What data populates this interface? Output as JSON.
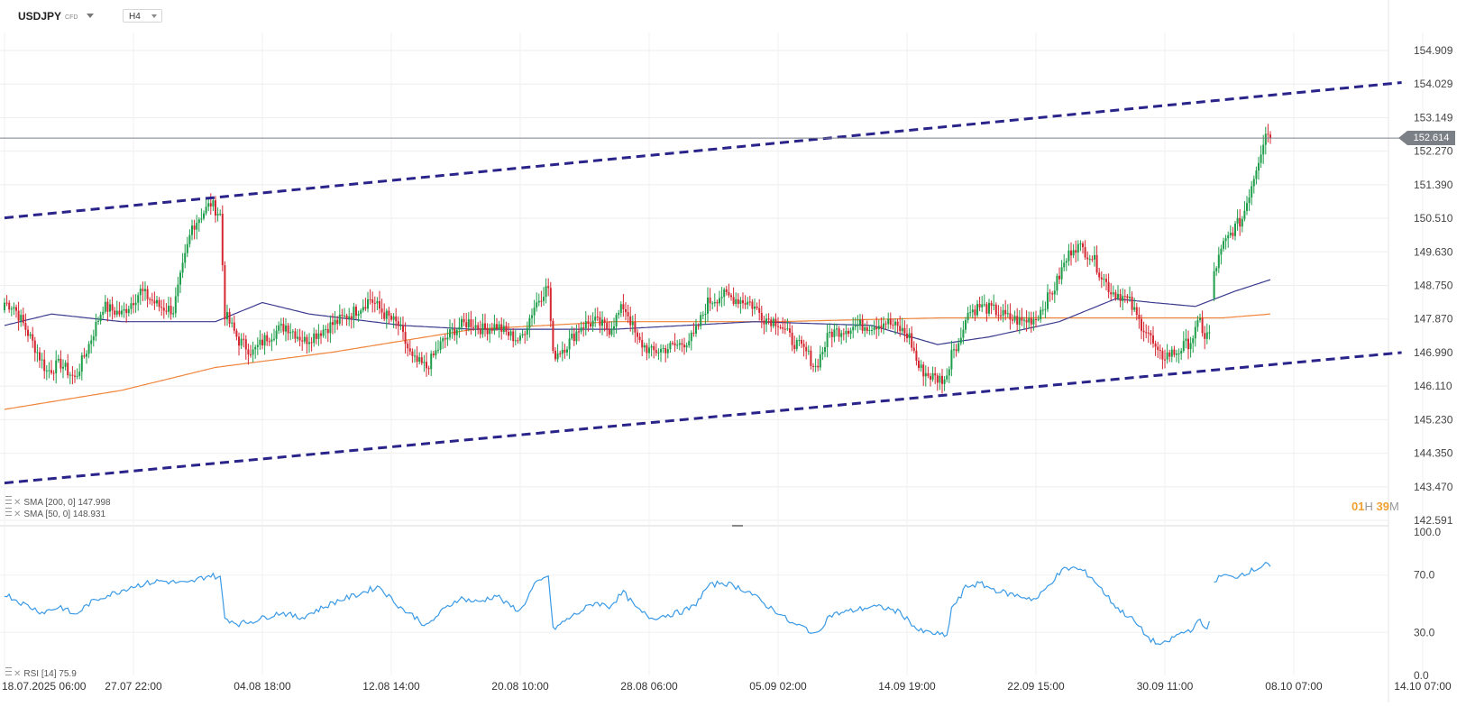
{
  "toolbar": {
    "symbol": "USDJPY",
    "symbol_type": "CFD",
    "timeframe": "H4"
  },
  "legend": {
    "sma200": "SMA [200, 0] 147.998",
    "sma50": "SMA [50, 0] 148.931",
    "rsi": "RSI [14] 75.9"
  },
  "countdown": {
    "hours": "01",
    "hours_unit": "H",
    "minutes": "39",
    "minutes_unit": "M"
  },
  "current_price": "152.614",
  "colors": {
    "up_candle": "#1e9e4a",
    "down_candle": "#d42731",
    "sma200": "#f0843a",
    "sma50": "#3a3a8e",
    "channel": "#29238a",
    "rsi": "#3a9ae6",
    "price_line": "#7b7f86",
    "countdown": "#f0a030"
  },
  "chart_data": [
    {
      "type": "candlestick",
      "symbol": "USDJPY",
      "timeframe": "H4",
      "y_ticks": [
        "154.909",
        "154.029",
        "153.149",
        "152.270",
        "151.390",
        "150.510",
        "149.630",
        "148.750",
        "147.870",
        "146.990",
        "146.110",
        "145.230",
        "144.350",
        "143.470",
        "142.591"
      ],
      "ylim": [
        142.591,
        155.5
      ],
      "x_ticks": [
        "18.07.2025 06:00",
        "27.07 22:00",
        "04.08 18:00",
        "12.08 14:00",
        "20.08 10:00",
        "28.08 06:00",
        "05.09 02:00",
        "14.09 19:00",
        "22.09 15:00",
        "30.09 11:00",
        "08.10 07:00",
        "14.10 07:00"
      ],
      "last_price": 152.614,
      "anchors": [
        [
          0,
          148.3
        ],
        [
          4,
          148.2
        ],
        [
          10,
          147.5
        ],
        [
          18,
          146.5
        ],
        [
          24,
          146.7
        ],
        [
          30,
          146.3
        ],
        [
          36,
          147.2
        ],
        [
          42,
          148.2
        ],
        [
          50,
          148.0
        ],
        [
          58,
          148.6
        ],
        [
          66,
          148.2
        ],
        [
          72,
          148.1
        ],
        [
          80,
          150.3
        ],
        [
          84,
          150.6
        ],
        [
          88,
          150.9
        ],
        [
          92,
          150.6
        ],
        [
          94,
          148.0
        ],
        [
          100,
          147.3
        ],
        [
          106,
          147.0
        ],
        [
          112,
          147.4
        ],
        [
          120,
          147.7
        ],
        [
          128,
          147.3
        ],
        [
          136,
          147.6
        ],
        [
          142,
          147.8
        ],
        [
          150,
          148.1
        ],
        [
          156,
          148.4
        ],
        [
          162,
          148.0
        ],
        [
          168,
          147.7
        ],
        [
          174,
          146.8
        ],
        [
          180,
          146.6
        ],
        [
          186,
          147.2
        ],
        [
          192,
          147.6
        ],
        [
          198,
          147.8
        ],
        [
          204,
          147.6
        ],
        [
          210,
          147.7
        ],
        [
          214,
          147.5
        ],
        [
          220,
          147.3
        ],
        [
          226,
          148.2
        ],
        [
          230,
          148.6
        ],
        [
          232,
          148.7
        ],
        [
          234,
          146.9
        ],
        [
          240,
          147.2
        ],
        [
          246,
          147.7
        ],
        [
          252,
          147.8
        ],
        [
          258,
          147.6
        ],
        [
          264,
          148.2
        ],
        [
          266,
          148.0
        ],
        [
          270,
          147.3
        ],
        [
          276,
          147.0
        ],
        [
          282,
          147.1
        ],
        [
          288,
          147.2
        ],
        [
          294,
          147.4
        ],
        [
          300,
          148.3
        ],
        [
          306,
          148.5
        ],
        [
          312,
          148.4
        ],
        [
          318,
          148.3
        ],
        [
          324,
          147.9
        ],
        [
          330,
          147.8
        ],
        [
          336,
          147.3
        ],
        [
          342,
          147.0
        ],
        [
          346,
          146.6
        ],
        [
          352,
          147.5
        ],
        [
          358,
          147.6
        ],
        [
          364,
          147.7
        ],
        [
          370,
          147.7
        ],
        [
          376,
          147.8
        ],
        [
          382,
          147.6
        ],
        [
          386,
          147.4
        ],
        [
          390,
          146.6
        ],
        [
          394,
          146.4
        ],
        [
          398,
          146.3
        ],
        [
          402,
          146.3
        ],
        [
          404,
          147.1
        ],
        [
          408,
          147.3
        ],
        [
          410,
          148.0
        ],
        [
          416,
          148.2
        ],
        [
          422,
          148.1
        ],
        [
          428,
          147.9
        ],
        [
          434,
          147.8
        ],
        [
          440,
          147.9
        ],
        [
          444,
          148.3
        ],
        [
          448,
          148.7
        ],
        [
          452,
          149.3
        ],
        [
          456,
          149.8
        ],
        [
          460,
          149.7
        ],
        [
          464,
          149.5
        ],
        [
          468,
          149.0
        ],
        [
          472,
          148.6
        ],
        [
          476,
          148.5
        ],
        [
          480,
          148.3
        ],
        [
          484,
          147.8
        ],
        [
          488,
          147.5
        ],
        [
          492,
          146.9
        ],
        [
          494,
          146.9
        ],
        [
          500,
          147.0
        ],
        [
          506,
          147.3
        ],
        [
          510,
          147.8
        ],
        [
          512,
          147.4
        ],
        [
          514,
          147.5
        ],
        [
          516,
          149.1
        ],
        [
          520,
          149.8
        ],
        [
          524,
          150.2
        ],
        [
          528,
          150.5
        ],
        [
          532,
          151.4
        ],
        [
          536,
          152.3
        ],
        [
          538,
          152.8
        ],
        [
          540,
          152.614
        ]
      ],
      "gaps_after": [
        514
      ],
      "series": [
        {
          "name": "SMA [200, 0]",
          "last": 147.998,
          "points": [
            [
              0,
              145.5
            ],
            [
              50,
              146.0
            ],
            [
              90,
              146.6
            ],
            [
              140,
              147.0
            ],
            [
              200,
              147.6
            ],
            [
              260,
              147.8
            ],
            [
              330,
              147.8
            ],
            [
              400,
              147.9
            ],
            [
              470,
              147.9
            ],
            [
              520,
              147.9
            ],
            [
              540,
              148.0
            ]
          ]
        },
        {
          "name": "SMA [50, 0]",
          "last": 148.931,
          "points": [
            [
              0,
              147.7
            ],
            [
              20,
              148.0
            ],
            [
              50,
              147.8
            ],
            [
              90,
              147.8
            ],
            [
              110,
              148.3
            ],
            [
              130,
              148.0
            ],
            [
              170,
              147.7
            ],
            [
              200,
              147.6
            ],
            [
              260,
              147.6
            ],
            [
              320,
              147.8
            ],
            [
              370,
              147.7
            ],
            [
              398,
              147.2
            ],
            [
              420,
              147.4
            ],
            [
              450,
              147.8
            ],
            [
              474,
              148.4
            ],
            [
              490,
              148.3
            ],
            [
              508,
              148.2
            ],
            [
              525,
              148.6
            ],
            [
              540,
              148.9
            ]
          ]
        }
      ],
      "channel_lines": [
        {
          "from": [
            0,
            150.52
          ],
          "to": [
            596,
            154.069
          ]
        },
        {
          "from": [
            0,
            143.57
          ],
          "to": [
            596,
            146.99
          ]
        }
      ]
    },
    {
      "type": "line",
      "name": "RSI [14]",
      "last": 75.9,
      "y_ticks": [
        "100.0",
        "70.0",
        "30.0",
        "0.0"
      ],
      "ylim": [
        0,
        100
      ],
      "points": [
        [
          0,
          57
        ],
        [
          8,
          50
        ],
        [
          16,
          44
        ],
        [
          24,
          48
        ],
        [
          30,
          42
        ],
        [
          36,
          50
        ],
        [
          42,
          55
        ],
        [
          48,
          58
        ],
        [
          54,
          62
        ],
        [
          60,
          64
        ],
        [
          66,
          66
        ],
        [
          72,
          65
        ],
        [
          78,
          64
        ],
        [
          84,
          68
        ],
        [
          88,
          70
        ],
        [
          92,
          68
        ],
        [
          94,
          40
        ],
        [
          100,
          36
        ],
        [
          106,
          38
        ],
        [
          112,
          41
        ],
        [
          118,
          44
        ],
        [
          126,
          40
        ],
        [
          134,
          46
        ],
        [
          142,
          52
        ],
        [
          150,
          56
        ],
        [
          156,
          60
        ],
        [
          160,
          62
        ],
        [
          164,
          55
        ],
        [
          170,
          46
        ],
        [
          176,
          40
        ],
        [
          180,
          34
        ],
        [
          186,
          44
        ],
        [
          194,
          54
        ],
        [
          202,
          51
        ],
        [
          210,
          56
        ],
        [
          214,
          50
        ],
        [
          220,
          45
        ],
        [
          226,
          63
        ],
        [
          230,
          67
        ],
        [
          232,
          70
        ],
        [
          234,
          32
        ],
        [
          240,
          39
        ],
        [
          246,
          45
        ],
        [
          252,
          51
        ],
        [
          258,
          48
        ],
        [
          264,
          58
        ],
        [
          270,
          46
        ],
        [
          276,
          40
        ],
        [
          282,
          42
        ],
        [
          288,
          44
        ],
        [
          294,
          48
        ],
        [
          300,
          62
        ],
        [
          306,
          65
        ],
        [
          312,
          62
        ],
        [
          318,
          58
        ],
        [
          324,
          50
        ],
        [
          330,
          44
        ],
        [
          336,
          36
        ],
        [
          342,
          33
        ],
        [
          346,
          28
        ],
        [
          352,
          42
        ],
        [
          358,
          44
        ],
        [
          364,
          46
        ],
        [
          370,
          48
        ],
        [
          376,
          47
        ],
        [
          382,
          44
        ],
        [
          386,
          38
        ],
        [
          390,
          31
        ],
        [
          394,
          30
        ],
        [
          398,
          29
        ],
        [
          402,
          27
        ],
        [
          404,
          47
        ],
        [
          408,
          55
        ],
        [
          410,
          62
        ],
        [
          416,
          64
        ],
        [
          422,
          60
        ],
        [
          428,
          57
        ],
        [
          434,
          55
        ],
        [
          440,
          53
        ],
        [
          444,
          60
        ],
        [
          448,
          68
        ],
        [
          452,
          74
        ],
        [
          456,
          75
        ],
        [
          460,
          73
        ],
        [
          464,
          68
        ],
        [
          468,
          60
        ],
        [
          472,
          52
        ],
        [
          476,
          45
        ],
        [
          480,
          41
        ],
        [
          484,
          34
        ],
        [
          488,
          26
        ],
        [
          492,
          22
        ],
        [
          494,
          21
        ],
        [
          500,
          28
        ],
        [
          506,
          32
        ],
        [
          510,
          38
        ],
        [
          512,
          33
        ],
        [
          514,
          36
        ],
        [
          516,
          66
        ],
        [
          520,
          70
        ],
        [
          524,
          68
        ],
        [
          528,
          71
        ],
        [
          532,
          73
        ],
        [
          536,
          76
        ],
        [
          538,
          79
        ],
        [
          540,
          75.9
        ]
      ]
    }
  ]
}
